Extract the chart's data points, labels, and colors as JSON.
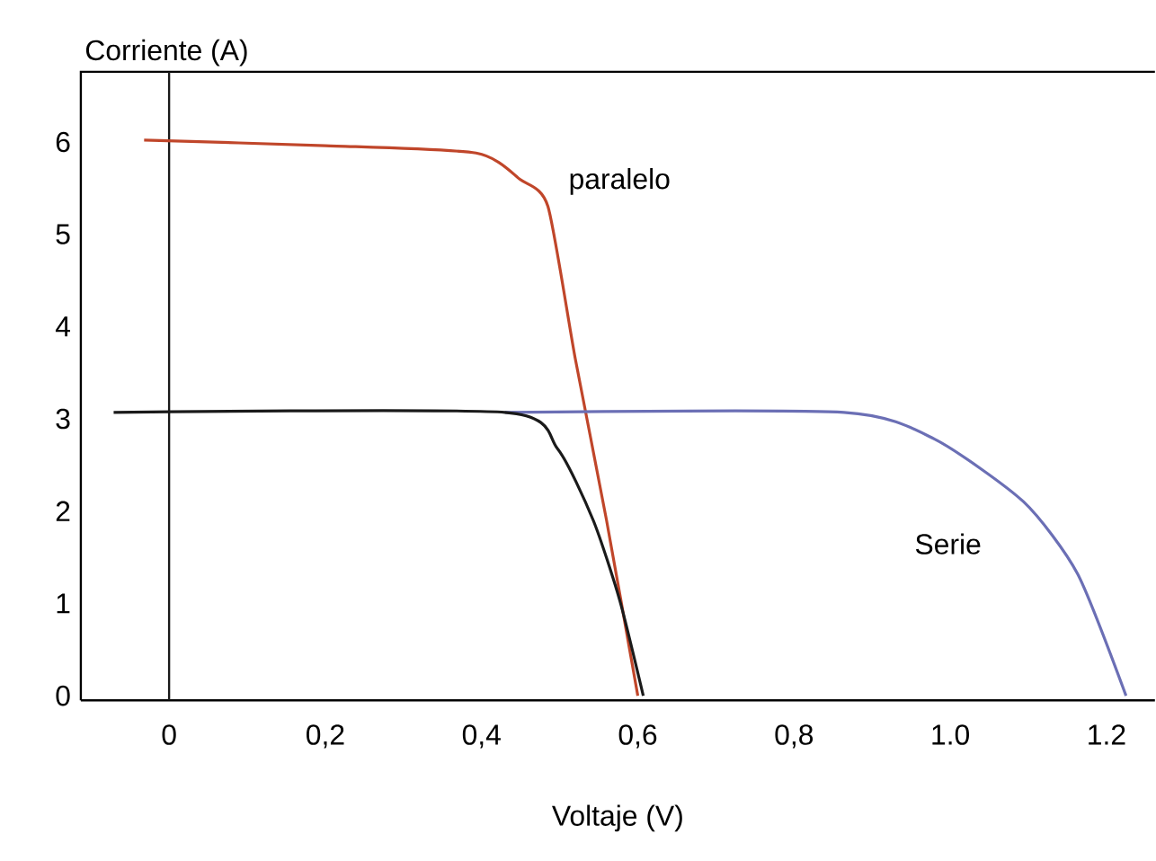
{
  "chart_data": {
    "type": "line",
    "xlabel": "Voltaje (V)",
    "ylabel": "Corriente (A)",
    "xlim": [
      -0.113,
      1.262
    ],
    "ylim": [
      -0.05,
      6.76
    ],
    "xticks": [
      0,
      {
        "value": 0.2,
        "label": "0,2"
      },
      {
        "value": 0.4,
        "label": "0,4"
      },
      {
        "value": 0.6,
        "label": "0,6"
      },
      {
        "value": 0.8,
        "label": "0,8"
      },
      {
        "value": 1.0,
        "label": "1.0"
      },
      {
        "value": 1.2,
        "label": "1.2"
      }
    ],
    "yticks": [
      0,
      1,
      2,
      3,
      4,
      5,
      6
    ],
    "grid": false,
    "legend": false,
    "marker": "none",
    "line_style": "solid",
    "ref_lines": [
      {
        "axis": "x",
        "value": 0,
        "color": "#1a1a1a"
      }
    ],
    "series": [
      {
        "name": "paralelo",
        "color": "#c0462a",
        "x": [
          -0.032,
          0.2,
          0.393,
          0.45,
          0.485,
          0.52,
          0.56,
          0.6
        ],
        "values": [
          6.02,
          5.96,
          5.88,
          5.59,
          5.3,
          3.65,
          1.9,
          0
        ]
      },
      {
        "name": "Serie",
        "color": "#6b6fb5",
        "x": [
          0.43,
          0.864,
          0.98,
          1.094,
          1.163,
          1.225
        ],
        "values": [
          3.07,
          3.07,
          2.78,
          2.1,
          1.32,
          0
        ]
      },
      {
        "color": "#1a1a1a",
        "x": [
          -0.071,
          0.43,
          0.497,
          0.543,
          0.577,
          0.607
        ],
        "values": [
          3.07,
          3.07,
          2.68,
          1.9,
          1.03,
          0
        ]
      }
    ]
  }
}
